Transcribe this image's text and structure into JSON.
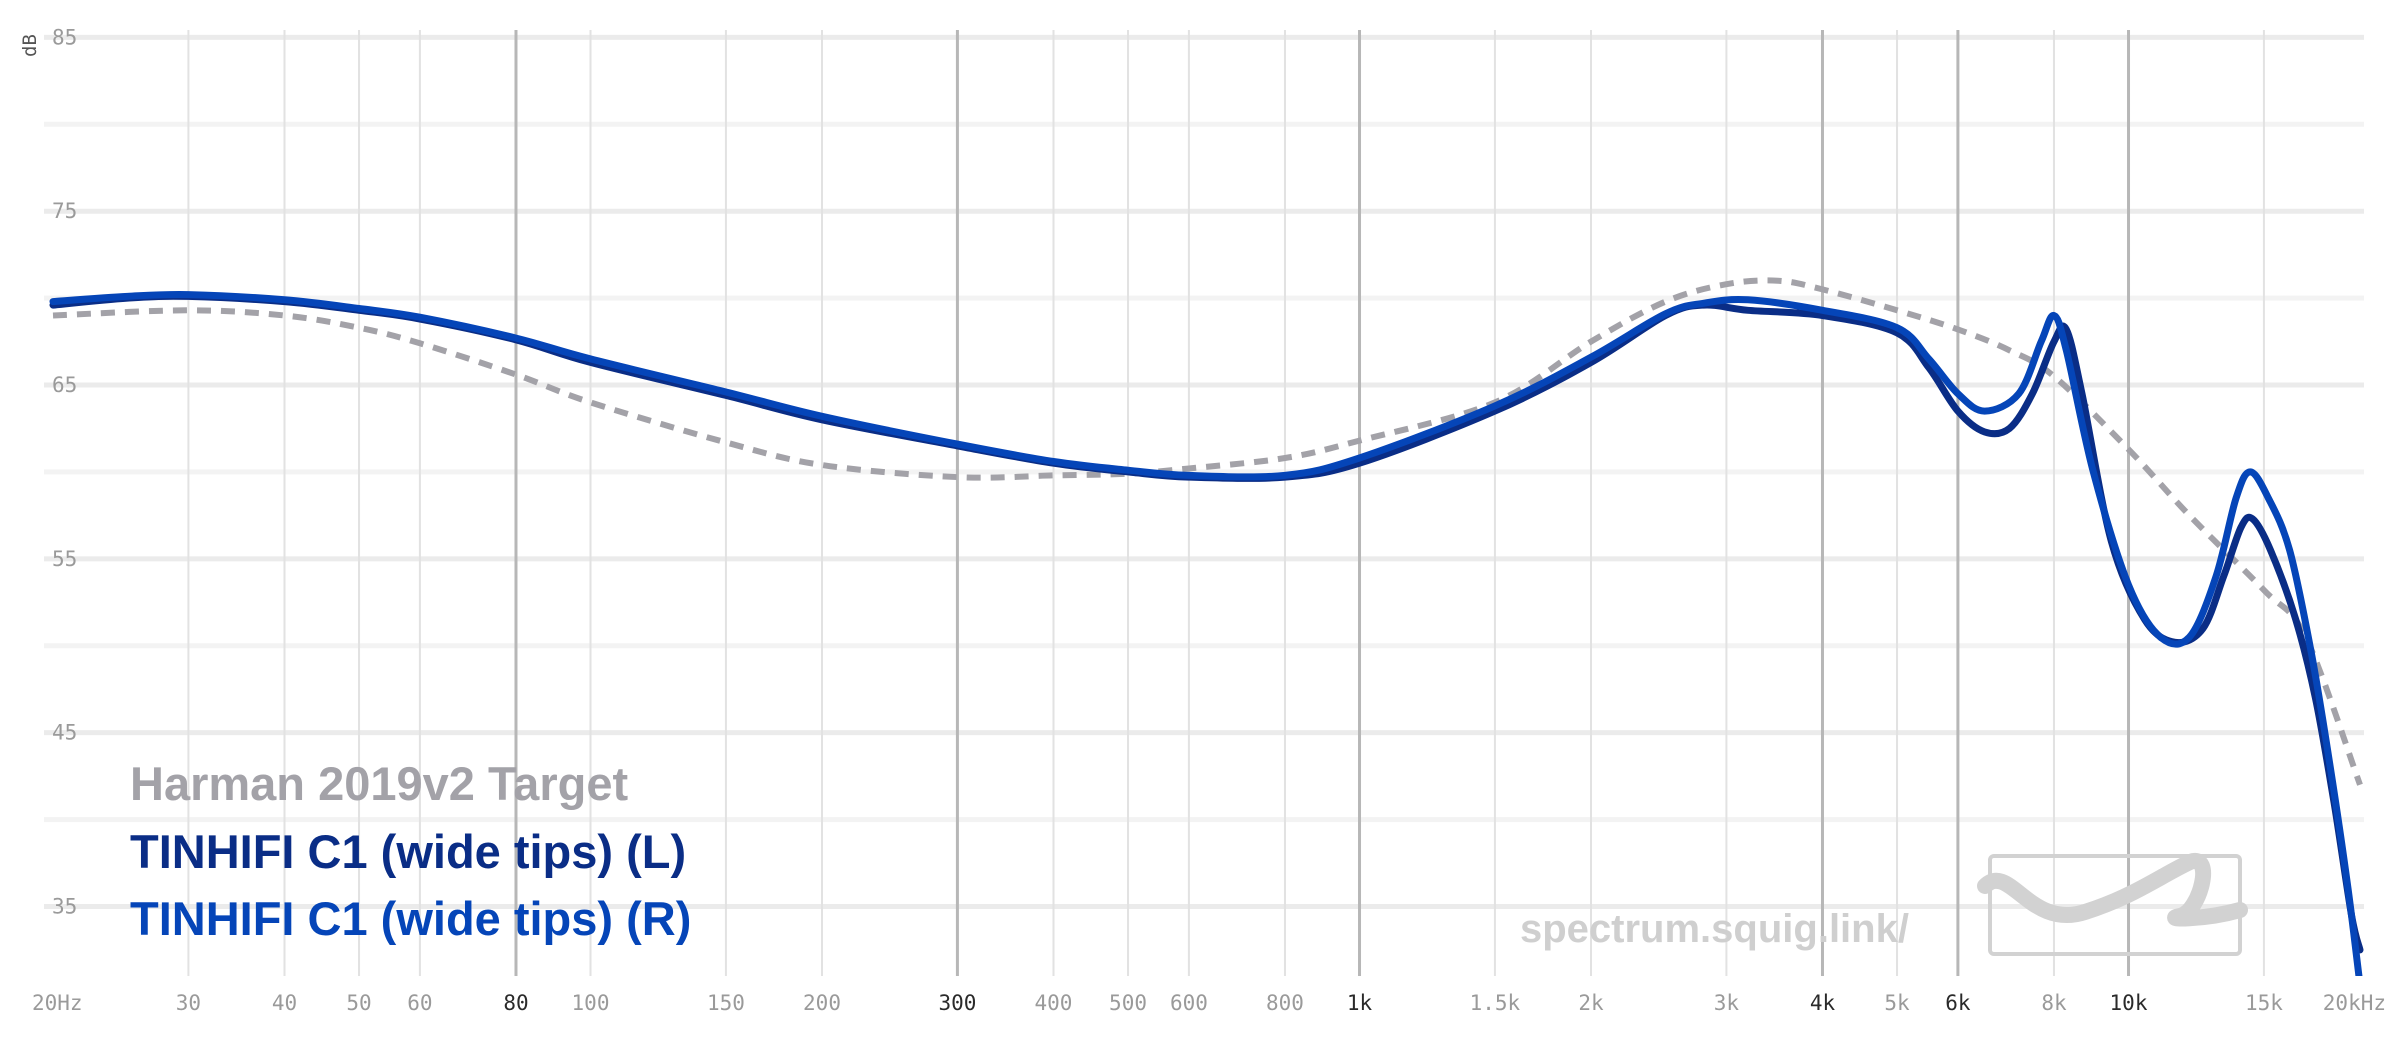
{
  "chart_data": {
    "type": "line",
    "xscale": "log",
    "xlim": [
      20,
      20000
    ],
    "ylim": [
      31,
      86
    ],
    "ylabel": "dB",
    "grid": true,
    "legend_position": "bottom-left",
    "x_ticks": [
      {
        "v": 20,
        "label": "20Hz",
        "major": false
      },
      {
        "v": 30,
        "label": "30",
        "major": false
      },
      {
        "v": 40,
        "label": "40",
        "major": false
      },
      {
        "v": 50,
        "label": "50",
        "major": false
      },
      {
        "v": 60,
        "label": "60",
        "major": false
      },
      {
        "v": 80,
        "label": "80",
        "major": true
      },
      {
        "v": 100,
        "label": "100",
        "major": false
      },
      {
        "v": 150,
        "label": "150",
        "major": false
      },
      {
        "v": 200,
        "label": "200",
        "major": false
      },
      {
        "v": 300,
        "label": "300",
        "major": true
      },
      {
        "v": 400,
        "label": "400",
        "major": false
      },
      {
        "v": 500,
        "label": "500",
        "major": false
      },
      {
        "v": 600,
        "label": "600",
        "major": false
      },
      {
        "v": 800,
        "label": "800",
        "major": false
      },
      {
        "v": 1000,
        "label": "1k",
        "major": true
      },
      {
        "v": 1500,
        "label": "1.5k",
        "major": false
      },
      {
        "v": 2000,
        "label": "2k",
        "major": false
      },
      {
        "v": 3000,
        "label": "3k",
        "major": false
      },
      {
        "v": 4000,
        "label": "4k",
        "major": true
      },
      {
        "v": 5000,
        "label": "5k",
        "major": false
      },
      {
        "v": 6000,
        "label": "6k",
        "major": true
      },
      {
        "v": 8000,
        "label": "8k",
        "major": false
      },
      {
        "v": 10000,
        "label": "10k",
        "major": true
      },
      {
        "v": 15000,
        "label": "15k",
        "major": false
      },
      {
        "v": 20000,
        "label": "20kHz",
        "major": false
      }
    ],
    "y_ticks": [
      85,
      75,
      65,
      55,
      45,
      35
    ],
    "series": [
      {
        "name": "Harman 2019v2 Target",
        "color": "#a3a2a8",
        "dashed": true,
        "points": [
          [
            20,
            69.0
          ],
          [
            30,
            69.3
          ],
          [
            40,
            69.0
          ],
          [
            50,
            68.3
          ],
          [
            60,
            67.4
          ],
          [
            80,
            65.6
          ],
          [
            100,
            64.0
          ],
          [
            150,
            61.7
          ],
          [
            200,
            60.4
          ],
          [
            300,
            59.7
          ],
          [
            400,
            59.8
          ],
          [
            500,
            59.9
          ],
          [
            600,
            60.2
          ],
          [
            800,
            60.8
          ],
          [
            1000,
            61.8
          ],
          [
            1500,
            64.0
          ],
          [
            2000,
            67.5
          ],
          [
            2500,
            69.8
          ],
          [
            3000,
            70.8
          ],
          [
            3500,
            71.0
          ],
          [
            4000,
            70.5
          ],
          [
            5000,
            69.3
          ],
          [
            6000,
            68.2
          ],
          [
            7000,
            67.0
          ],
          [
            8000,
            65.5
          ],
          [
            10000,
            61.3
          ],
          [
            12000,
            57.5
          ],
          [
            15000,
            53.2
          ],
          [
            17000,
            50.5
          ],
          [
            20000,
            42.0
          ]
        ]
      },
      {
        "name": "TINHIFI C1 (wide tips) (L)",
        "color": "#0a2d86",
        "dashed": false,
        "points": [
          [
            20,
            69.6
          ],
          [
            25,
            70.0
          ],
          [
            30,
            70.1
          ],
          [
            40,
            69.8
          ],
          [
            50,
            69.3
          ],
          [
            60,
            68.8
          ],
          [
            80,
            67.6
          ],
          [
            100,
            66.3
          ],
          [
            150,
            64.4
          ],
          [
            200,
            63.0
          ],
          [
            300,
            61.5
          ],
          [
            400,
            60.5
          ],
          [
            500,
            60.0
          ],
          [
            600,
            59.7
          ],
          [
            800,
            59.7
          ],
          [
            1000,
            60.5
          ],
          [
            1500,
            63.5
          ],
          [
            2000,
            66.3
          ],
          [
            2500,
            69.0
          ],
          [
            2800,
            69.6
          ],
          [
            3200,
            69.3
          ],
          [
            4000,
            69.0
          ],
          [
            5000,
            68.0
          ],
          [
            5500,
            66.0
          ],
          [
            6000,
            63.5
          ],
          [
            6500,
            62.3
          ],
          [
            7000,
            62.5
          ],
          [
            7500,
            64.5
          ],
          [
            8000,
            67.5
          ],
          [
            8300,
            68.2
          ],
          [
            8700,
            64.5
          ],
          [
            9500,
            56.0
          ],
          [
            10500,
            51.5
          ],
          [
            11500,
            50.2
          ],
          [
            12500,
            51.0
          ],
          [
            13300,
            54.0
          ],
          [
            14000,
            56.8
          ],
          [
            14500,
            57.3
          ],
          [
            15300,
            55.5
          ],
          [
            16500,
            51.5
          ],
          [
            17500,
            47.0
          ],
          [
            18500,
            41.0
          ],
          [
            19500,
            34.5
          ],
          [
            20000,
            32.5
          ]
        ]
      },
      {
        "name": "TINHIFI C1 (wide tips) (R)",
        "color": "#0545b8",
        "dashed": false,
        "points": [
          [
            20,
            69.8
          ],
          [
            25,
            70.1
          ],
          [
            30,
            70.2
          ],
          [
            40,
            69.9
          ],
          [
            50,
            69.4
          ],
          [
            60,
            68.9
          ],
          [
            80,
            67.7
          ],
          [
            100,
            66.5
          ],
          [
            150,
            64.6
          ],
          [
            200,
            63.2
          ],
          [
            300,
            61.6
          ],
          [
            400,
            60.6
          ],
          [
            500,
            60.1
          ],
          [
            600,
            59.8
          ],
          [
            800,
            59.8
          ],
          [
            1000,
            60.8
          ],
          [
            1500,
            63.8
          ],
          [
            2000,
            66.6
          ],
          [
            2500,
            69.1
          ],
          [
            2800,
            69.7
          ],
          [
            3200,
            69.9
          ],
          [
            4000,
            69.3
          ],
          [
            5000,
            68.3
          ],
          [
            5500,
            66.5
          ],
          [
            6000,
            64.5
          ],
          [
            6500,
            63.5
          ],
          [
            7200,
            64.5
          ],
          [
            7700,
            67.5
          ],
          [
            8000,
            69.0
          ],
          [
            8300,
            67.0
          ],
          [
            9000,
            60.0
          ],
          [
            10000,
            53.5
          ],
          [
            11000,
            50.5
          ],
          [
            12000,
            50.5
          ],
          [
            13000,
            54.0
          ],
          [
            13800,
            58.5
          ],
          [
            14400,
            60.0
          ],
          [
            15200,
            58.5
          ],
          [
            16200,
            55.5
          ],
          [
            17300,
            49.5
          ],
          [
            18300,
            43.0
          ],
          [
            19300,
            36.0
          ],
          [
            20000,
            30.5
          ]
        ]
      }
    ]
  },
  "watermark": {
    "text": "spectrum.squig.link/",
    "logo": "squiglink-logo"
  }
}
